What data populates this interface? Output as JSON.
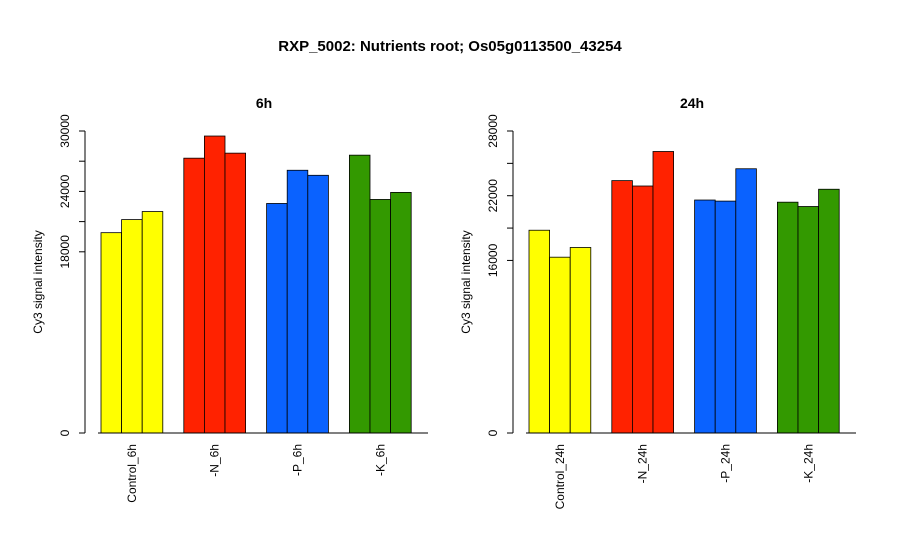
{
  "title": "RXP_5002: Nutrients root; Os05g0113500_43254",
  "chart_data": [
    {
      "type": "bar",
      "title": "6h",
      "ylabel": "Cy3 signal intensity",
      "ylim": [
        0,
        30000
      ],
      "yticks": [
        0,
        18000,
        24000,
        30000
      ],
      "groups": [
        {
          "label": "Control_6h",
          "color": "#FFFF00",
          "values": [
            19900,
            21200,
            22000
          ]
        },
        {
          "label": "-N_6h",
          "color": "#FF2200",
          "values": [
            27300,
            29500,
            27800
          ]
        },
        {
          "label": "-P_6h",
          "color": "#0A62FF",
          "values": [
            22800,
            26100,
            25600
          ]
        },
        {
          "label": "-K_6h",
          "color": "#339900",
          "values": [
            27600,
            23200,
            23900
          ]
        }
      ]
    },
    {
      "type": "bar",
      "title": "24h",
      "ylabel": "Cy3 signal intensity",
      "ylim": [
        0,
        28000
      ],
      "yticks": [
        0,
        16000,
        22000,
        28000
      ],
      "groups": [
        {
          "label": "Control_24h",
          "color": "#FFFF00",
          "values": [
            18800,
            16300,
            17200
          ]
        },
        {
          "label": "-N_24h",
          "color": "#FF2200",
          "values": [
            23400,
            22900,
            26100
          ]
        },
        {
          "label": "-P_24h",
          "color": "#0A62FF",
          "values": [
            21600,
            21500,
            24500
          ]
        },
        {
          "label": "-K_24h",
          "color": "#339900",
          "values": [
            21400,
            21000,
            22600
          ]
        }
      ]
    }
  ]
}
